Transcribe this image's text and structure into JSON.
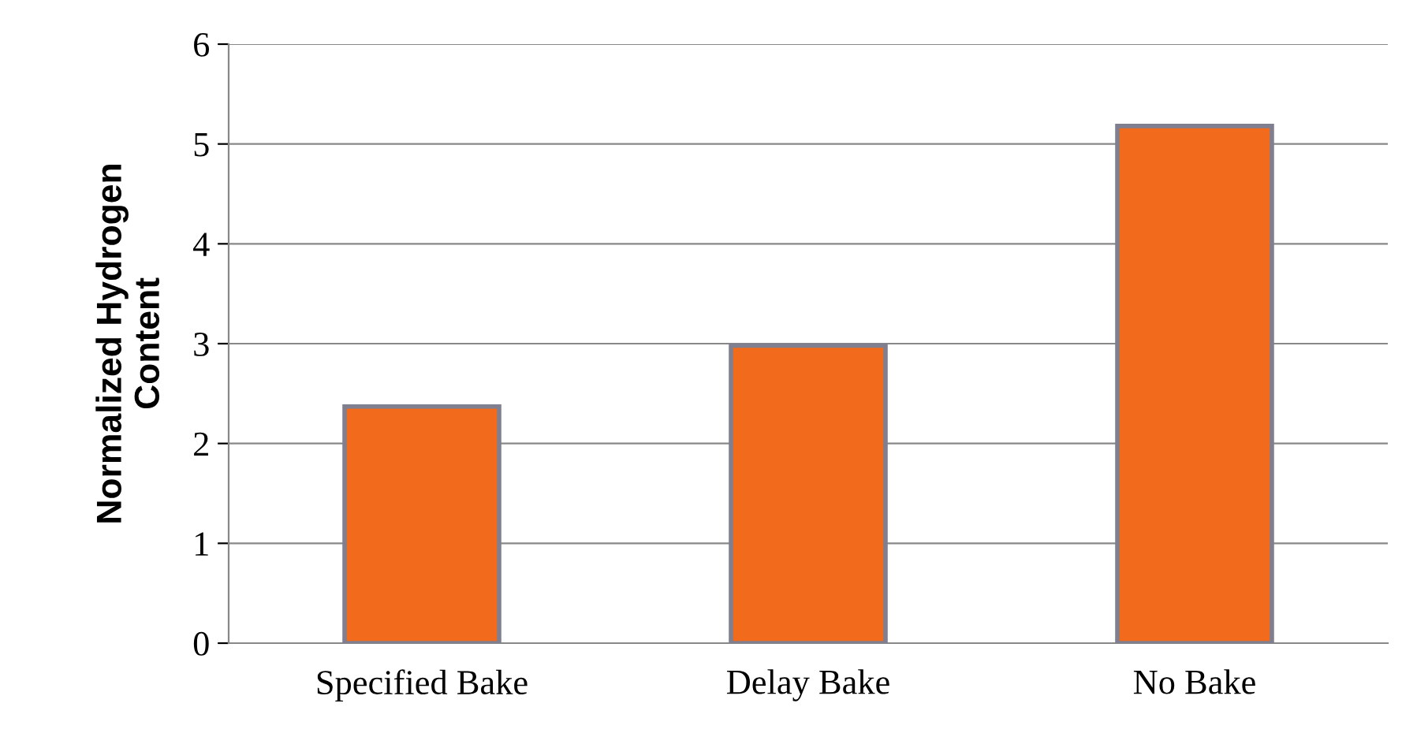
{
  "chart_data": {
    "type": "bar",
    "ylabel": "Normalized Hydrogen\nContent",
    "categories": [
      "Specified Bake",
      "Delay Bake",
      "No Bake"
    ],
    "values": [
      2.37,
      2.98,
      5.18
    ],
    "color": "#f26b1d",
    "ylim": [
      0,
      6
    ],
    "yticks": [
      0,
      1,
      2,
      3,
      4,
      5,
      6
    ],
    "grid": "y",
    "legend": false
  }
}
